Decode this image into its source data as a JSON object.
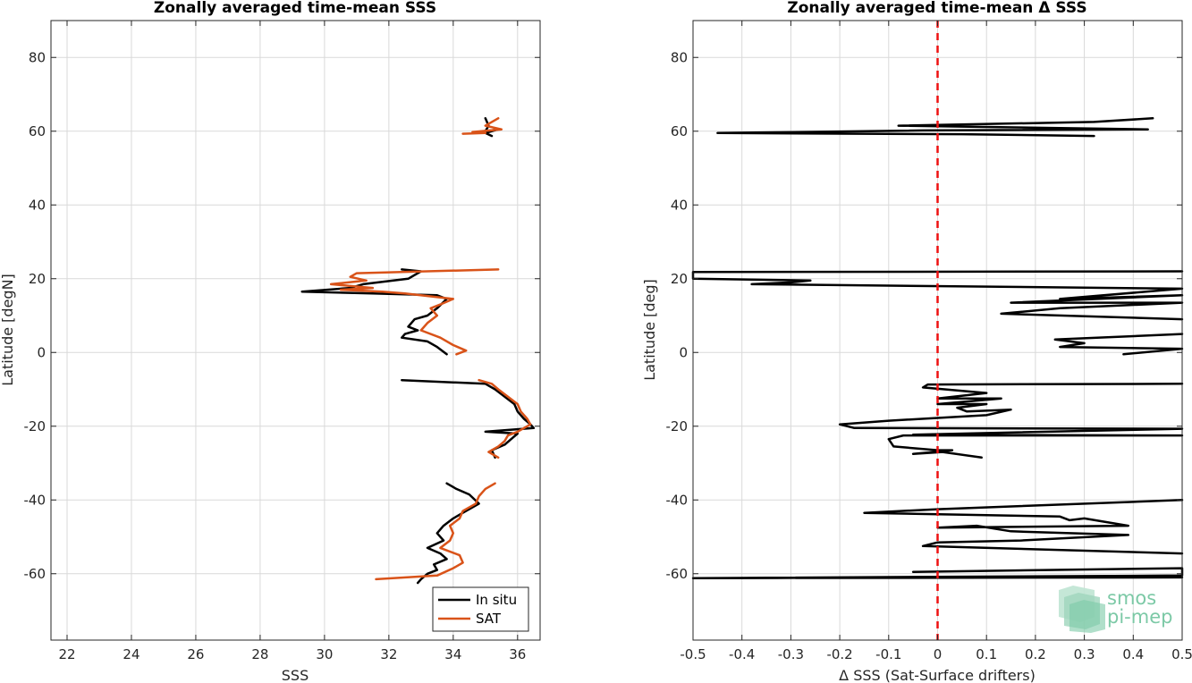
{
  "chart_data": [
    {
      "type": "line",
      "title": "Zonally averaged time-mean SSS",
      "xlabel": "SSS",
      "ylabel": "Latitude [degN]",
      "xlim": [
        21.5,
        36.7
      ],
      "ylim": [
        -78,
        90
      ],
      "xticks": [
        22,
        24,
        26,
        28,
        30,
        32,
        34,
        36
      ],
      "yticks": [
        -60,
        -40,
        -20,
        0,
        20,
        40,
        60,
        80
      ],
      "grid": true,
      "legend_position": "bottom-right",
      "series": [
        {
          "name": "In situ",
          "color": "#000000",
          "segments": [
            [
              [
                35.0,
                63.5
              ],
              [
                35.1,
                61.5
              ],
              [
                35.0,
                60.0
              ],
              [
                35.4,
                60.5
              ],
              [
                35.0,
                59.5
              ],
              [
                35.2,
                58.7
              ]
            ],
            [
              [
                32.4,
                22.5
              ],
              [
                33.0,
                22.0
              ],
              [
                32.6,
                20.0
              ],
              [
                31.2,
                18.5
              ],
              [
                30.8,
                17.5
              ],
              [
                29.3,
                16.5
              ],
              [
                31.5,
                16.0
              ],
              [
                33.5,
                15.5
              ],
              [
                33.8,
                14.5
              ],
              [
                33.5,
                12.0
              ],
              [
                33.2,
                10.0
              ],
              [
                32.8,
                9.0
              ],
              [
                32.6,
                7.0
              ],
              [
                32.9,
                6.0
              ],
              [
                32.5,
                5.0
              ],
              [
                32.4,
                4.0
              ],
              [
                33.2,
                3.0
              ],
              [
                33.5,
                1.5
              ],
              [
                33.8,
                -0.5
              ]
            ],
            [
              [
                32.4,
                -7.5
              ],
              [
                35.0,
                -8.5
              ],
              [
                35.3,
                -10.0
              ],
              [
                35.6,
                -12.0
              ],
              [
                35.9,
                -14.0
              ],
              [
                36.0,
                -16.0
              ],
              [
                36.2,
                -18.0
              ],
              [
                36.4,
                -19.5
              ],
              [
                36.5,
                -20.5
              ],
              [
                35.0,
                -21.5
              ],
              [
                36.0,
                -22.0
              ],
              [
                35.8,
                -23.5
              ],
              [
                35.6,
                -25.0
              ],
              [
                35.2,
                -26.5
              ],
              [
                35.3,
                -28.5
              ]
            ],
            [
              [
                33.8,
                -35.5
              ],
              [
                34.1,
                -37.0
              ],
              [
                34.5,
                -38.5
              ],
              [
                34.8,
                -41.0
              ],
              [
                34.4,
                -43.0
              ],
              [
                34.0,
                -45.0
              ],
              [
                33.7,
                -47.0
              ],
              [
                33.5,
                -49.0
              ],
              [
                33.7,
                -51.0
              ],
              [
                33.2,
                -53.0
              ],
              [
                33.6,
                -54.5
              ],
              [
                33.8,
                -56.0
              ],
              [
                33.4,
                -57.5
              ],
              [
                33.5,
                -59.0
              ],
              [
                33.2,
                -60.0
              ],
              [
                33.0,
                -61.5
              ],
              [
                32.9,
                -62.5
              ]
            ]
          ]
        },
        {
          "name": "SAT",
          "color": "#d95319",
          "segments": [
            [
              [
                35.4,
                63.5
              ],
              [
                35.0,
                61.5
              ],
              [
                35.5,
                60.5
              ],
              [
                34.6,
                59.8
              ],
              [
                35.0,
                59.5
              ],
              [
                34.3,
                59.3
              ]
            ],
            [
              [
                35.4,
                22.5
              ],
              [
                31.0,
                21.5
              ],
              [
                30.8,
                20.5
              ],
              [
                31.3,
                19.5
              ],
              [
                30.2,
                18.5
              ],
              [
                31.5,
                17.5
              ],
              [
                30.5,
                17.0
              ],
              [
                31.8,
                16.5
              ],
              [
                32.5,
                16.0
              ],
              [
                34.0,
                14.5
              ],
              [
                33.6,
                13.0
              ],
              [
                33.3,
                12.0
              ],
              [
                33.5,
                10.0
              ],
              [
                33.2,
                8.0
              ],
              [
                33.0,
                6.0
              ],
              [
                33.6,
                4.0
              ],
              [
                34.0,
                2.0
              ],
              [
                34.4,
                0.5
              ],
              [
                34.1,
                -0.5
              ]
            ],
            [
              [
                34.8,
                -7.5
              ],
              [
                35.2,
                -8.5
              ],
              [
                35.4,
                -10.0
              ],
              [
                35.7,
                -12.0
              ],
              [
                36.0,
                -14.0
              ],
              [
                36.1,
                -16.0
              ],
              [
                36.3,
                -18.0
              ],
              [
                36.4,
                -19.5
              ],
              [
                36.2,
                -20.5
              ],
              [
                36.0,
                -21.5
              ],
              [
                35.7,
                -22.5
              ],
              [
                35.6,
                -24.0
              ],
              [
                35.4,
                -25.5
              ],
              [
                35.1,
                -27.0
              ],
              [
                35.4,
                -28.5
              ]
            ],
            [
              [
                35.3,
                -35.5
              ],
              [
                35.0,
                -37.0
              ],
              [
                34.8,
                -39.0
              ],
              [
                34.7,
                -41.0
              ],
              [
                34.3,
                -43.0
              ],
              [
                34.2,
                -45.0
              ],
              [
                33.9,
                -47.0
              ],
              [
                34.0,
                -49.0
              ],
              [
                33.9,
                -51.0
              ],
              [
                33.6,
                -53.0
              ],
              [
                34.2,
                -55.0
              ],
              [
                34.3,
                -57.0
              ],
              [
                34.0,
                -58.5
              ],
              [
                33.5,
                -60.5
              ],
              [
                31.6,
                -61.5
              ]
            ]
          ]
        }
      ]
    },
    {
      "type": "line",
      "title": "Zonally averaged time-mean Δ SSS",
      "xlabel": "Δ SSS (Sat-Surface drifters)",
      "ylabel": "Latitude [deg]",
      "xlim": [
        -0.5,
        0.5
      ],
      "ylim": [
        -78,
        90
      ],
      "xticks": [
        -0.5,
        -0.4,
        -0.3,
        -0.2,
        -0.1,
        0,
        0.1,
        0.2,
        0.3,
        0.4,
        0.5
      ],
      "xticklabels": [
        "-0.5",
        "-0.4",
        "-0.3",
        "-0.2",
        "-0.1",
        "0",
        "0.1",
        "0.2",
        "0.3",
        "0.4",
        "0.5"
      ],
      "yticks": [
        -60,
        -40,
        -20,
        0,
        20,
        40,
        60,
        80
      ],
      "grid": true,
      "reference_line": {
        "x": 0,
        "color": "#ee1111",
        "style": "dashed"
      },
      "series": [
        {
          "color": "#000000",
          "segments": [
            [
              [
                0.44,
                63.5
              ],
              [
                0.32,
                62.5
              ],
              [
                -0.08,
                61.5
              ],
              [
                0.43,
                60.5
              ],
              [
                -0.03,
                60.2
              ],
              [
                -0.45,
                59.5
              ],
              [
                0.05,
                59.2
              ],
              [
                0.32,
                58.7
              ]
            ],
            [
              [
                0.5,
                22.0
              ],
              [
                -0.5,
                21.8
              ],
              [
                -0.5,
                20.0
              ],
              [
                -0.26,
                19.5
              ],
              [
                -0.3,
                19.0
              ],
              [
                -0.38,
                18.5
              ],
              [
                0.5,
                17.3
              ],
              [
                0.25,
                14.5
              ],
              [
                0.5,
                15.5
              ],
              [
                0.15,
                13.5
              ],
              [
                0.5,
                13.5
              ],
              [
                0.25,
                12.0
              ],
              [
                0.13,
                10.5
              ],
              [
                0.5,
                9.0
              ]
            ],
            [
              [
                0.5,
                5.0
              ],
              [
                0.24,
                3.5
              ],
              [
                0.3,
                2.5
              ],
              [
                0.25,
                1.5
              ],
              [
                0.5,
                1.0
              ],
              [
                0.38,
                -0.5
              ]
            ],
            [
              [
                0.5,
                -8.5
              ],
              [
                -0.02,
                -8.7
              ],
              [
                -0.03,
                -9.5
              ],
              [
                0.1,
                -11.0
              ],
              [
                0.0,
                -12.5
              ],
              [
                0.13,
                -12.5
              ],
              [
                0.0,
                -14.0
              ],
              [
                0.1,
                -14.0
              ],
              [
                0.04,
                -15.0
              ],
              [
                0.06,
                -16.0
              ],
              [
                0.15,
                -15.5
              ],
              [
                0.1,
                -17.0
              ],
              [
                -0.1,
                -18.5
              ],
              [
                -0.2,
                -19.5
              ],
              [
                -0.17,
                -20.5
              ],
              [
                0.5,
                -20.7
              ],
              [
                -0.05,
                -22.3
              ],
              [
                0.5,
                -22.5
              ],
              [
                -0.07,
                -22.5
              ],
              [
                -0.1,
                -23.5
              ],
              [
                -0.09,
                -25.5
              ],
              [
                0.0,
                -26.5
              ],
              [
                0.03,
                -26.5
              ],
              [
                -0.05,
                -27.5
              ],
              [
                0.01,
                -27.0
              ],
              [
                0.09,
                -28.5
              ]
            ],
            [
              [
                0.5,
                -40.0
              ],
              [
                0.0,
                -42.5
              ],
              [
                -0.15,
                -43.5
              ],
              [
                0.25,
                -44.5
              ],
              [
                0.27,
                -45.5
              ],
              [
                0.3,
                -45.0
              ],
              [
                0.39,
                -47.0
              ],
              [
                0.0,
                -47.5
              ],
              [
                0.08,
                -47.0
              ],
              [
                0.15,
                -48.5
              ],
              [
                0.39,
                -49.5
              ],
              [
                0.17,
                -51.0
              ],
              [
                0.0,
                -51.5
              ],
              [
                -0.03,
                -52.5
              ],
              [
                0.5,
                -54.5
              ]
            ],
            [
              [
                -0.05,
                -59.5
              ],
              [
                0.5,
                -58.5
              ],
              [
                0.5,
                -60.5
              ],
              [
                -0.5,
                -61.2
              ],
              [
                0.5,
                -61.0
              ]
            ]
          ]
        }
      ]
    }
  ],
  "legend": {
    "items": [
      "In situ",
      "SAT"
    ]
  },
  "logo": {
    "line1": "smos",
    "line2": "pi-mep"
  },
  "colors": {
    "insitu": "#000000",
    "sat": "#d95319",
    "reference": "#ee1111",
    "grid": "#d9d9d9",
    "logo": "#7cc9a6"
  }
}
